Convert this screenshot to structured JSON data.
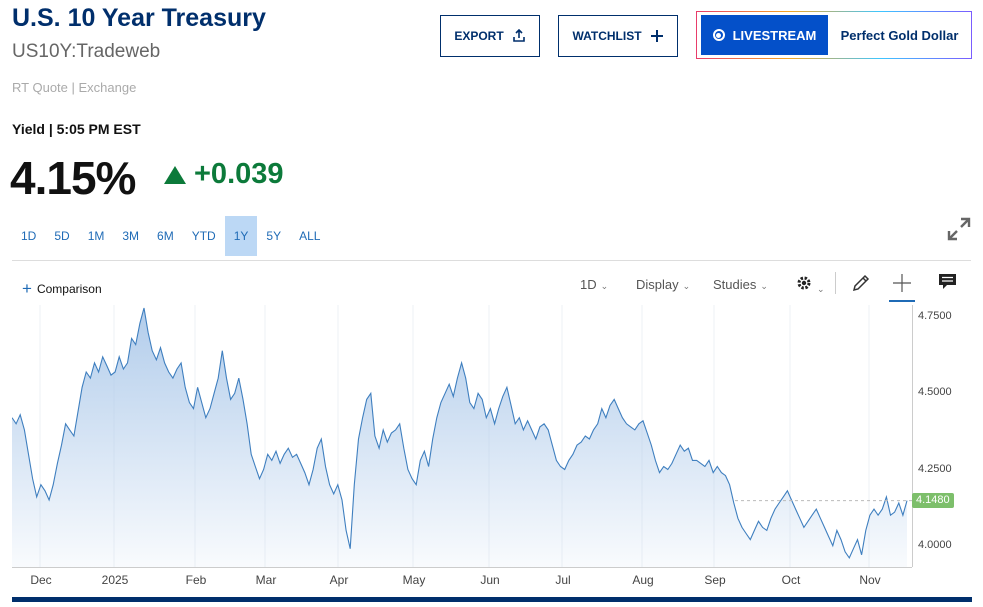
{
  "header": {
    "title": "U.S. 10 Year Treasury",
    "symbol": "US10Y:Tradeweb",
    "quote_info": "RT Quote | Exchange",
    "export_label": "EXPORT",
    "watchlist_label": "WATCHLIST",
    "livestream_label": "LIVESTREAM",
    "promo_label": "Perfect Gold Dollar"
  },
  "quote": {
    "label": "Yield | 5:05 PM EST",
    "value": "4.15%",
    "change": "+0.039",
    "change_color": "#0c7a3a"
  },
  "ranges": [
    {
      "label": "1D"
    },
    {
      "label": "5D"
    },
    {
      "label": "1M"
    },
    {
      "label": "3M"
    },
    {
      "label": "6M"
    },
    {
      "label": "YTD"
    },
    {
      "label": "1Y",
      "active": true
    },
    {
      "label": "5Y"
    },
    {
      "label": "ALL"
    }
  ],
  "toolbar": {
    "comparison_label": "Comparison",
    "interval_label": "1D",
    "display_label": "Display",
    "studies_label": "Studies",
    "icons": [
      "gear-icon",
      "pencil-icon",
      "crosshair-icon",
      "comment-icon"
    ]
  },
  "chart_data": {
    "type": "area",
    "y_ticks": [
      "4.7500",
      "4.5000",
      "4.2500",
      "4.0000"
    ],
    "x_ticks": [
      "Dec",
      "2025",
      "Feb",
      "Mar",
      "Apr",
      "May",
      "Jun",
      "Jul",
      "Aug",
      "Sep",
      "Oct",
      "Nov"
    ],
    "last_value_label": "4.1480",
    "last_value": 4.148,
    "ylim": [
      3.93,
      4.79
    ],
    "line_color": "#3f7fbf",
    "fill_color": "#aecaea",
    "label_color": "#7dbf6b",
    "series": [
      {
        "values": [
          4.42,
          4.4,
          4.43,
          4.38,
          4.3,
          4.22,
          4.16,
          4.2,
          4.18,
          4.15,
          4.2,
          4.27,
          4.33,
          4.4,
          4.38,
          4.36,
          4.44,
          4.52,
          4.57,
          4.55,
          4.6,
          4.57,
          4.62,
          4.59,
          4.56,
          4.57,
          4.62,
          4.58,
          4.6,
          4.68,
          4.66,
          4.73,
          4.78,
          4.7,
          4.64,
          4.61,
          4.65,
          4.6,
          4.57,
          4.55,
          4.58,
          4.6,
          4.52,
          4.47,
          4.45,
          4.52,
          4.47,
          4.42,
          4.45,
          4.5,
          4.55,
          4.64,
          4.55,
          4.48,
          4.5,
          4.55,
          4.48,
          4.4,
          4.3,
          4.26,
          4.22,
          4.25,
          4.3,
          4.28,
          4.31,
          4.27,
          4.3,
          4.32,
          4.29,
          4.3,
          4.27,
          4.24,
          4.2,
          4.25,
          4.32,
          4.35,
          4.26,
          4.2,
          4.17,
          4.2,
          4.15,
          4.05,
          3.99,
          4.2,
          4.35,
          4.42,
          4.48,
          4.5,
          4.36,
          4.32,
          4.38,
          4.34,
          4.37,
          4.38,
          4.4,
          4.32,
          4.25,
          4.22,
          4.2,
          4.28,
          4.31,
          4.26,
          4.35,
          4.42,
          4.47,
          4.5,
          4.53,
          4.49,
          4.55,
          4.6,
          4.55,
          4.47,
          4.45,
          4.5,
          4.48,
          4.42,
          4.45,
          4.4,
          4.45,
          4.49,
          4.52,
          4.46,
          4.4,
          4.42,
          4.38,
          4.41,
          4.38,
          4.35,
          4.39,
          4.4,
          4.38,
          4.33,
          4.28,
          4.26,
          4.25,
          4.28,
          4.3,
          4.33,
          4.34,
          4.36,
          4.35,
          4.38,
          4.4,
          4.45,
          4.42,
          4.46,
          4.48,
          4.45,
          4.42,
          4.4,
          4.39,
          4.38,
          4.4,
          4.41,
          4.37,
          4.33,
          4.28,
          4.24,
          4.26,
          4.25,
          4.27,
          4.3,
          4.33,
          4.31,
          4.32,
          4.28,
          4.28,
          4.27,
          4.26,
          4.28,
          4.24,
          4.26,
          4.24,
          4.23,
          4.2,
          4.14,
          4.09,
          4.06,
          4.04,
          4.02,
          4.05,
          4.08,
          4.06,
          4.05,
          4.09,
          4.12,
          4.14,
          4.16,
          4.18,
          4.15,
          4.12,
          4.09,
          4.06,
          4.08,
          4.1,
          4.12,
          4.09,
          4.06,
          4.03,
          4.0,
          4.05,
          4.02,
          3.98,
          3.96,
          3.99,
          4.02,
          3.97,
          4.05,
          4.1,
          4.12,
          4.1,
          4.12,
          4.16,
          4.1,
          4.11,
          4.14,
          4.1,
          4.148
        ]
      }
    ]
  }
}
